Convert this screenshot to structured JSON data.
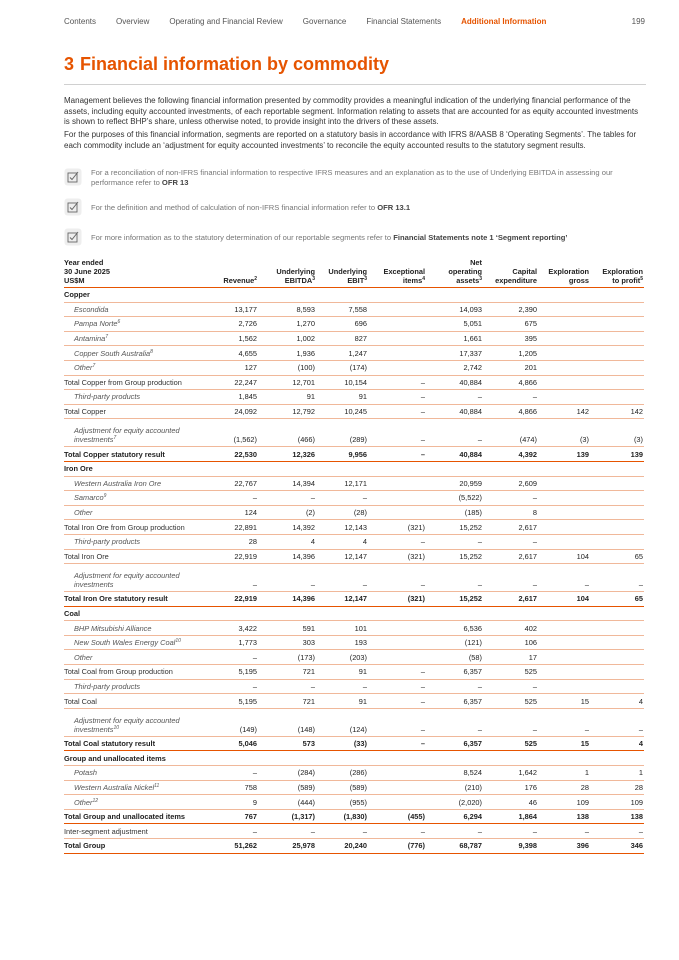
{
  "nav": {
    "items": [
      "Contents",
      "Overview",
      "Operating and Financial Review",
      "Governance",
      "Financial Statements",
      "Additional Information"
    ],
    "active": 5,
    "page": "199"
  },
  "heading": {
    "number": "3",
    "title": "Financial information by commodity"
  },
  "paragraphs": [
    "Management believes the following financial information presented by commodity provides a meaningful indication of the underlying financial performance of the assets, including equity accounted investments, of each reportable segment. Information relating to assets that are accounted for as equity accounted investments is shown to reflect BHP’s share, unless otherwise noted, to provide insight into the drivers of these assets.",
    "For the purposes of this financial information, segments are reported on a statutory basis in accordance with IFRS 8/AASB 8 ‘Operating Segments’. The tables for each commodity include an ‘adjustment for equity accounted investments’ to reconcile the equity accounted results to the statutory segment results."
  ],
  "notes": [
    {
      "text": "For a reconciliation of non-IFRS financial information to respective IFRS measures and an explanation as to the use of Underlying EBITDA in assessing our performance refer to ",
      "ref": "OFR 13"
    },
    {
      "text": "For the definition and method of calculation of non-IFRS financial information refer to ",
      "ref": "OFR 13.1"
    },
    {
      "text": "For more information as to the statutory determination of our reportable segments refer to ",
      "ref": "Financial Statements note 1 ‘Segment reporting’"
    }
  ],
  "table": {
    "header": [
      {
        "lines": [
          "Year ended",
          "30 June 2025",
          "US$M"
        ]
      },
      {
        "lines": [
          "Revenue"
        ],
        "sup": "2"
      },
      {
        "lines": [
          "Underlying",
          "EBITDA"
        ],
        "sup": "3"
      },
      {
        "lines": [
          "Underlying",
          "EBIT"
        ],
        "sup": "3"
      },
      {
        "lines": [
          "Exceptional",
          "items"
        ],
        "sup": "4"
      },
      {
        "lines": [
          "Net",
          "operating",
          "assets"
        ],
        "sup": "3"
      },
      {
        "lines": [
          "Capital",
          "expenditure"
        ]
      },
      {
        "lines": [
          "Exploration",
          "gross"
        ]
      },
      {
        "lines": [
          "Exploration",
          "to profit"
        ],
        "sup": "5"
      }
    ],
    "rows": [
      {
        "label": "Copper",
        "style": "section"
      },
      {
        "label": "Escondida",
        "style": "item",
        "cells": [
          "13,177",
          "8,593",
          "7,558",
          null,
          "14,093",
          "2,390",
          null,
          null
        ]
      },
      {
        "label": "Pampa Norte",
        "sup": "6",
        "style": "item",
        "cells": [
          "2,726",
          "1,270",
          "696",
          null,
          "5,051",
          "675",
          null,
          null
        ]
      },
      {
        "label": "Antamina",
        "sup": "7",
        "style": "item",
        "cells": [
          "1,562",
          "1,002",
          "827",
          null,
          "1,661",
          "395",
          null,
          null
        ]
      },
      {
        "label": "Copper South Australia",
        "sup": "8",
        "style": "item",
        "cells": [
          "4,655",
          "1,936",
          "1,247",
          null,
          "17,337",
          "1,205",
          null,
          null
        ]
      },
      {
        "label": "Other",
        "sup": "7",
        "style": "item",
        "cells": [
          "127",
          "(100)",
          "(174)",
          null,
          "2,742",
          "201",
          null,
          null
        ]
      },
      {
        "label": "Total Copper from Group production",
        "style": "subtotal",
        "cells": [
          "22,247",
          "12,701",
          "10,154",
          "–",
          "40,884",
          "4,866",
          null,
          null
        ]
      },
      {
        "label": "Third-party products",
        "style": "item",
        "cells": [
          "1,845",
          "91",
          "91",
          "–",
          "–",
          "–",
          null,
          null
        ]
      },
      {
        "label": "Total Copper",
        "style": "subtotal",
        "cells": [
          "24,092",
          "12,792",
          "10,245",
          "–",
          "40,884",
          "4,866",
          "142",
          "142"
        ]
      },
      {
        "label": "Adjustment for equity accounted investments",
        "sup": "7",
        "style": "item",
        "cells": [
          "(1,562)",
          "(466)",
          "(289)",
          "–",
          "–",
          "(474)",
          "(3)",
          "(3)"
        ]
      },
      {
        "label": "Total Copper statutory result",
        "style": "total",
        "cells": [
          "22,530",
          "12,326",
          "9,956",
          "–",
          "40,884",
          "4,392",
          "139",
          "139"
        ]
      },
      {
        "label": "Iron Ore",
        "style": "section"
      },
      {
        "label": "Western Australia Iron Ore",
        "style": "item",
        "cells": [
          "22,767",
          "14,394",
          "12,171",
          null,
          "20,959",
          "2,609",
          null,
          null
        ]
      },
      {
        "label": "Samarco",
        "sup": "9",
        "style": "item",
        "cells": [
          "–",
          "–",
          "–",
          null,
          "(5,522)",
          "–",
          null,
          null
        ]
      },
      {
        "label": "Other",
        "style": "item",
        "cells": [
          "124",
          "(2)",
          "(28)",
          null,
          "(185)",
          "8",
          null,
          null
        ]
      },
      {
        "label": "Total Iron Ore from Group production",
        "style": "subtotal",
        "cells": [
          "22,891",
          "14,392",
          "12,143",
          "(321)",
          "15,252",
          "2,617",
          null,
          null
        ]
      },
      {
        "label": "Third-party products",
        "style": "item",
        "cells": [
          "28",
          "4",
          "4",
          "–",
          "–",
          "–",
          null,
          null
        ]
      },
      {
        "label": "Total Iron Ore",
        "style": "subtotal",
        "cells": [
          "22,919",
          "14,396",
          "12,147",
          "(321)",
          "15,252",
          "2,617",
          "104",
          "65"
        ]
      },
      {
        "label": "Adjustment for equity accounted investments",
        "style": "item",
        "cells": [
          "–",
          "–",
          "–",
          "–",
          "–",
          "–",
          "–",
          "–"
        ]
      },
      {
        "label": "Total Iron Ore statutory result",
        "style": "total",
        "cells": [
          "22,919",
          "14,396",
          "12,147",
          "(321)",
          "15,252",
          "2,617",
          "104",
          "65"
        ]
      },
      {
        "label": "Coal",
        "style": "section"
      },
      {
        "label": "BHP Mitsubishi Alliance",
        "style": "item",
        "cells": [
          "3,422",
          "591",
          "101",
          null,
          "6,536",
          "402",
          null,
          null
        ]
      },
      {
        "label": "New South Wales Energy Coal",
        "sup": "10",
        "style": "item",
        "cells": [
          "1,773",
          "303",
          "193",
          null,
          "(121)",
          "106",
          null,
          null
        ]
      },
      {
        "label": "Other",
        "style": "item",
        "cells": [
          "–",
          "(173)",
          "(203)",
          null,
          "(58)",
          "17",
          null,
          null
        ]
      },
      {
        "label": "Total Coal from Group production",
        "style": "subtotal",
        "cells": [
          "5,195",
          "721",
          "91",
          "–",
          "6,357",
          "525",
          null,
          null
        ]
      },
      {
        "label": "Third-party products",
        "style": "item",
        "cells": [
          "–",
          "–",
          "–",
          "–",
          "–",
          "–",
          null,
          null
        ]
      },
      {
        "label": "Total Coal",
        "style": "subtotal",
        "cells": [
          "5,195",
          "721",
          "91",
          "–",
          "6,357",
          "525",
          "15",
          "4"
        ]
      },
      {
        "label": "Adjustment for equity accounted investments",
        "sup": "10",
        "style": "item",
        "cells": [
          "(149)",
          "(148)",
          "(124)",
          "–",
          "–",
          "–",
          "–",
          "–"
        ]
      },
      {
        "label": "Total Coal statutory result",
        "style": "total",
        "cells": [
          "5,046",
          "573",
          "(33)",
          "–",
          "6,357",
          "525",
          "15",
          "4"
        ]
      },
      {
        "label": "Group and unallocated items",
        "style": "section"
      },
      {
        "label": "Potash",
        "style": "item",
        "cells": [
          "–",
          "(284)",
          "(286)",
          null,
          "8,524",
          "1,642",
          "1",
          "1"
        ]
      },
      {
        "label": "Western Australia Nickel",
        "sup": "11",
        "style": "item",
        "cells": [
          "758",
          "(589)",
          "(589)",
          null,
          "(210)",
          "176",
          "28",
          "28"
        ]
      },
      {
        "label": "Other",
        "sup": "12",
        "style": "item",
        "cells": [
          "9",
          "(444)",
          "(955)",
          null,
          "(2,020)",
          "46",
          "109",
          "109"
        ]
      },
      {
        "label": "Total Group and unallocated items",
        "style": "total",
        "cells": [
          "767",
          "(1,317)",
          "(1,830)",
          "(455)",
          "6,294",
          "1,864",
          "138",
          "138"
        ]
      },
      {
        "label": "Inter-segment adjustment",
        "style": "subtotal",
        "cells": [
          "–",
          "–",
          "–",
          "–",
          "–",
          "–",
          "–",
          "–"
        ]
      },
      {
        "label": "Total Group",
        "style": "total",
        "cells": [
          "51,262",
          "25,978",
          "20,240",
          "(776)",
          "68,787",
          "9,398",
          "396",
          "346"
        ]
      }
    ]
  }
}
